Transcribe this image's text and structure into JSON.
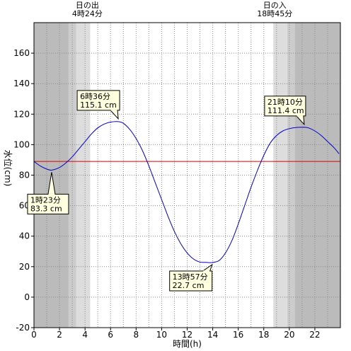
{
  "chart_data": {
    "type": "line",
    "xlabel": "時間(h)",
    "ylabel": "水位(cm)",
    "xlim": [
      0,
      24
    ],
    "ylim": [
      -20,
      180
    ],
    "x_ticks": [
      0,
      2,
      4,
      6,
      8,
      10,
      12,
      14,
      16,
      18,
      20,
      22
    ],
    "y_ticks": [
      -20,
      0,
      20,
      40,
      60,
      80,
      100,
      120,
      140,
      160
    ],
    "sunrise": {
      "label": "日の出",
      "time": "4時24分",
      "hour": 4.4
    },
    "sunset": {
      "label": "日の入",
      "time": "18時45分",
      "hour": 18.75
    },
    "reference_level": 89,
    "series": [
      {
        "x": [
          0,
          0.5,
          1,
          1.383,
          2,
          2.5,
          3,
          3.5,
          4,
          4.5,
          5,
          5.5,
          6,
          6.6,
          7,
          7.5,
          8,
          8.5,
          9,
          9.5,
          10,
          10.5,
          11,
          11.5,
          12,
          12.5,
          13,
          13.5,
          13.95,
          14.5,
          15,
          15.5,
          16,
          16.5,
          17,
          17.5,
          18,
          18.5,
          19,
          19.5,
          20,
          20.5,
          21.167,
          21.5,
          22,
          22.5,
          23,
          23.5,
          23.9
        ],
        "y": [
          89,
          86,
          84,
          83.3,
          85,
          88,
          92,
          97,
          102,
          107,
          111,
          113.5,
          114.8,
          115.1,
          114,
          110,
          104,
          96,
          86,
          75,
          64,
          53,
          43,
          35,
          29,
          25,
          23,
          22.8,
          22.7,
          24,
          29,
          37,
          48,
          60,
          72,
          83,
          93,
          101,
          106,
          109,
          110.5,
          111.2,
          111.4,
          111,
          109,
          106,
          102,
          98,
          94
        ]
      }
    ],
    "annotations": [
      {
        "time": "1時23分",
        "value": "83.3 cm",
        "x": 1.383,
        "y": 83.3
      },
      {
        "time": "6時36分",
        "value": "115.1 cm",
        "x": 6.6,
        "y": 115.1
      },
      {
        "time": "13時57分",
        "value": "22.7 cm",
        "x": 13.95,
        "y": 22.7
      },
      {
        "time": "21時10分",
        "value": "111.4 cm",
        "x": 21.167,
        "y": 111.4
      }
    ],
    "colors": {
      "line": "#0000cc",
      "reference": "#dd0000",
      "night": "#bbbbbb",
      "twilight_dark": "#cccccc",
      "twilight_light": "#dddddd",
      "day": "#ffffff",
      "grid": "#888888",
      "callout_fill": "#ffffe0"
    }
  }
}
